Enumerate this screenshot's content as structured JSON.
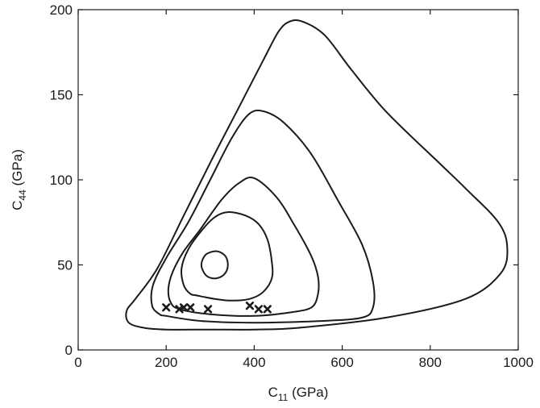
{
  "chart_data": {
    "type": "line",
    "xlabel": {
      "main": "C",
      "sub": "11",
      "unit": " (GPa)"
    },
    "ylabel": {
      "main": "C",
      "sub": "44",
      "unit": " (GPa)"
    },
    "xlim": [
      0,
      1000
    ],
    "ylim": [
      0,
      200
    ],
    "xticks": [
      0,
      200,
      400,
      600,
      800,
      1000
    ],
    "yticks": [
      0,
      50,
      100,
      150,
      200
    ],
    "grid": false,
    "series": [
      {
        "kind": "contour",
        "points": [
          [
            310,
            42
          ],
          [
            330,
            44
          ],
          [
            340,
            49
          ],
          [
            335,
            55
          ],
          [
            315,
            58
          ],
          [
            290,
            56
          ],
          [
            280,
            50
          ],
          [
            290,
            44
          ],
          [
            310,
            42
          ]
        ]
      },
      {
        "kind": "contour",
        "points": [
          [
            270,
            32
          ],
          [
            310,
            30
          ],
          [
            350,
            29
          ],
          [
            390,
            30
          ],
          [
            420,
            34
          ],
          [
            440,
            42
          ],
          [
            440,
            52
          ],
          [
            430,
            65
          ],
          [
            410,
            74
          ],
          [
            380,
            79
          ],
          [
            340,
            81
          ],
          [
            310,
            78
          ],
          [
            280,
            70
          ],
          [
            250,
            59
          ],
          [
            235,
            48
          ],
          [
            240,
            38
          ],
          [
            255,
            33
          ],
          [
            270,
            32
          ]
        ]
      },
      {
        "kind": "contour",
        "points": [
          [
            230,
            24
          ],
          [
            300,
            21
          ],
          [
            400,
            20
          ],
          [
            480,
            22
          ],
          [
            530,
            25
          ],
          [
            545,
            33
          ],
          [
            545,
            43
          ],
          [
            530,
            55
          ],
          [
            490,
            74
          ],
          [
            450,
            90
          ],
          [
            400,
            101
          ],
          [
            365,
            98
          ],
          [
            325,
            88
          ],
          [
            275,
            70
          ],
          [
            240,
            58
          ],
          [
            215,
            46
          ],
          [
            205,
            36
          ],
          [
            210,
            28
          ],
          [
            230,
            24
          ]
        ]
      },
      {
        "kind": "contour",
        "points": [
          [
            200,
            20
          ],
          [
            280,
            17
          ],
          [
            400,
            16
          ],
          [
            550,
            17
          ],
          [
            645,
            19
          ],
          [
            670,
            25
          ],
          [
            670,
            40
          ],
          [
            645,
            62
          ],
          [
            590,
            88
          ],
          [
            530,
            115
          ],
          [
            470,
            133
          ],
          [
            425,
            140
          ],
          [
            390,
            139
          ],
          [
            350,
            125
          ],
          [
            300,
            100
          ],
          [
            250,
            75
          ],
          [
            200,
            54
          ],
          [
            170,
            38
          ],
          [
            168,
            26
          ],
          [
            185,
            21
          ],
          [
            200,
            20
          ]
        ]
      },
      {
        "kind": "contour",
        "points": [
          [
            150,
            13
          ],
          [
            200,
            12
          ],
          [
            300,
            12
          ],
          [
            400,
            12
          ],
          [
            500,
            13
          ],
          [
            700,
            19
          ],
          [
            880,
            30
          ],
          [
            960,
            45
          ],
          [
            975,
            60
          ],
          [
            955,
            75
          ],
          [
            880,
            95
          ],
          [
            820,
            110
          ],
          [
            700,
            140
          ],
          [
            620,
            165
          ],
          [
            560,
            185
          ],
          [
            510,
            193
          ],
          [
            480,
            193
          ],
          [
            455,
            187
          ],
          [
            420,
            170
          ],
          [
            360,
            140
          ],
          [
            300,
            110
          ],
          [
            240,
            79
          ],
          [
            180,
            48
          ],
          [
            130,
            30
          ],
          [
            110,
            23
          ],
          [
            115,
            16
          ],
          [
            150,
            13
          ]
        ]
      },
      {
        "kind": "markers",
        "symbol": "x",
        "points": [
          [
            200,
            25
          ],
          [
            230,
            24
          ],
          [
            240,
            25
          ],
          [
            255,
            25
          ],
          [
            295,
            24
          ],
          [
            390,
            26
          ],
          [
            410,
            24
          ],
          [
            430,
            24
          ]
        ]
      }
    ]
  }
}
